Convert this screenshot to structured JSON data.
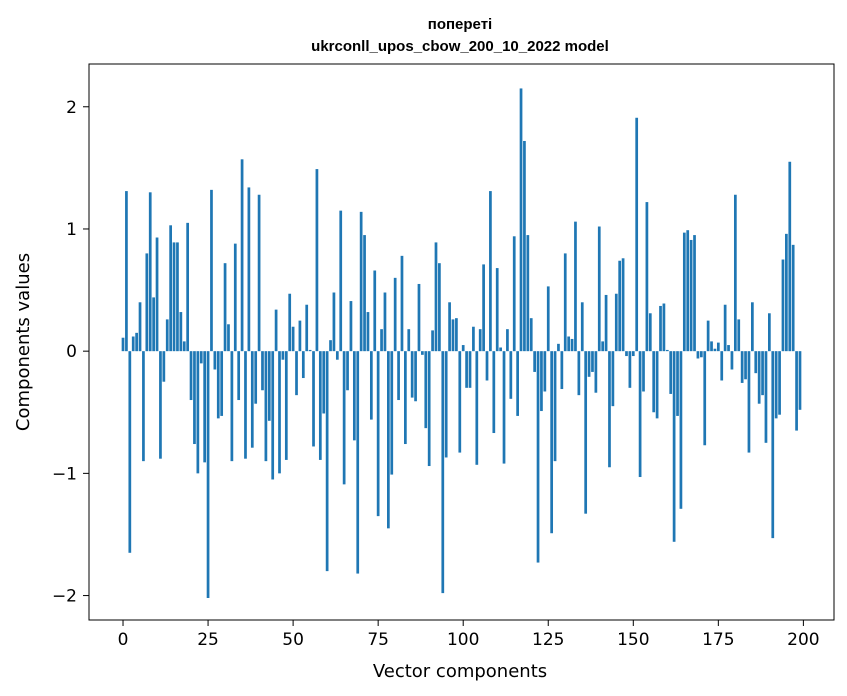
{
  "chart_data": {
    "type": "bar",
    "title": "попереті",
    "subtitle": "ukrconll_upos_cbow_200_10_2022 model",
    "xlabel": "Vector components",
    "ylabel": "Components values",
    "xlim": [
      -10,
      209
    ],
    "ylim": [
      -2.2,
      2.35
    ],
    "xticks": [
      0,
      25,
      50,
      75,
      100,
      125,
      150,
      175,
      200
    ],
    "yticks": [
      -2,
      -1,
      0,
      1,
      2
    ],
    "ytick_labels": [
      "−2",
      "−1",
      "0",
      "1",
      "2"
    ],
    "grid": false,
    "bar_color": "#1f77b4",
    "values": [
      0.11,
      1.31,
      -1.65,
      0.12,
      0.15,
      0.4,
      -0.9,
      0.8,
      1.3,
      0.44,
      0.93,
      -0.88,
      -0.25,
      0.26,
      1.03,
      0.89,
      0.89,
      0.32,
      0.08,
      1.05,
      -0.4,
      -0.76,
      -1.0,
      -0.1,
      -0.91,
      -2.02,
      1.32,
      -0.15,
      -0.55,
      -0.53,
      0.72,
      0.22,
      -0.9,
      0.88,
      -0.4,
      1.57,
      -0.88,
      1.34,
      -0.79,
      -0.43,
      1.28,
      -0.32,
      -0.9,
      -0.57,
      -1.05,
      0.34,
      -1.0,
      -0.07,
      -0.89,
      0.47,
      0.2,
      -0.36,
      0.25,
      -0.22,
      0.38,
      0.01,
      -0.78,
      1.49,
      -0.89,
      -0.51,
      -1.8,
      0.09,
      0.48,
      -0.07,
      1.15,
      -1.09,
      -0.32,
      0.41,
      -0.73,
      -1.82,
      1.14,
      0.95,
      0.32,
      -0.56,
      0.66,
      -1.35,
      0.18,
      0.48,
      -1.45,
      -1.01,
      0.6,
      -0.4,
      0.78,
      -0.76,
      0.18,
      -0.38,
      -0.41,
      0.55,
      -0.03,
      -0.63,
      -0.94,
      0.17,
      0.89,
      0.72,
      -1.98,
      -0.87,
      0.4,
      0.26,
      0.27,
      -0.83,
      0.05,
      -0.3,
      -0.3,
      0.2,
      -0.93,
      0.18,
      0.71,
      -0.24,
      1.31,
      -0.67,
      0.68,
      0.03,
      -0.92,
      0.18,
      -0.39,
      0.94,
      -0.53,
      2.15,
      1.72,
      0.95,
      0.27,
      -0.17,
      -1.73,
      -0.49,
      -0.33,
      0.53,
      -1.49,
      -0.9,
      0.06,
      -0.31,
      0.8,
      0.12,
      0.1,
      1.06,
      -0.36,
      0.4,
      -1.33,
      -0.21,
      -0.17,
      -0.34,
      1.02,
      0.08,
      0.46,
      -0.95,
      -0.45,
      0.47,
      0.74,
      0.76,
      -0.04,
      -0.3,
      -0.04,
      1.91,
      -1.03,
      -0.33,
      1.22,
      0.31,
      -0.5,
      -0.55,
      0.37,
      0.39,
      0.01,
      -0.35,
      -1.56,
      -0.53,
      -1.29,
      0.97,
      0.99,
      0.91,
      0.95,
      -0.06,
      -0.05,
      -0.77,
      0.25,
      0.08,
      0.02,
      0.07,
      -0.24,
      0.38,
      0.05,
      -0.15,
      1.28,
      0.26,
      -0.26,
      -0.23,
      -0.83,
      0.4,
      -0.18,
      -0.43,
      -0.36,
      -0.75,
      0.31,
      -1.53,
      -0.55,
      -0.52,
      0.75,
      0.96,
      1.55,
      0.87,
      -0.65,
      -0.48
    ]
  }
}
